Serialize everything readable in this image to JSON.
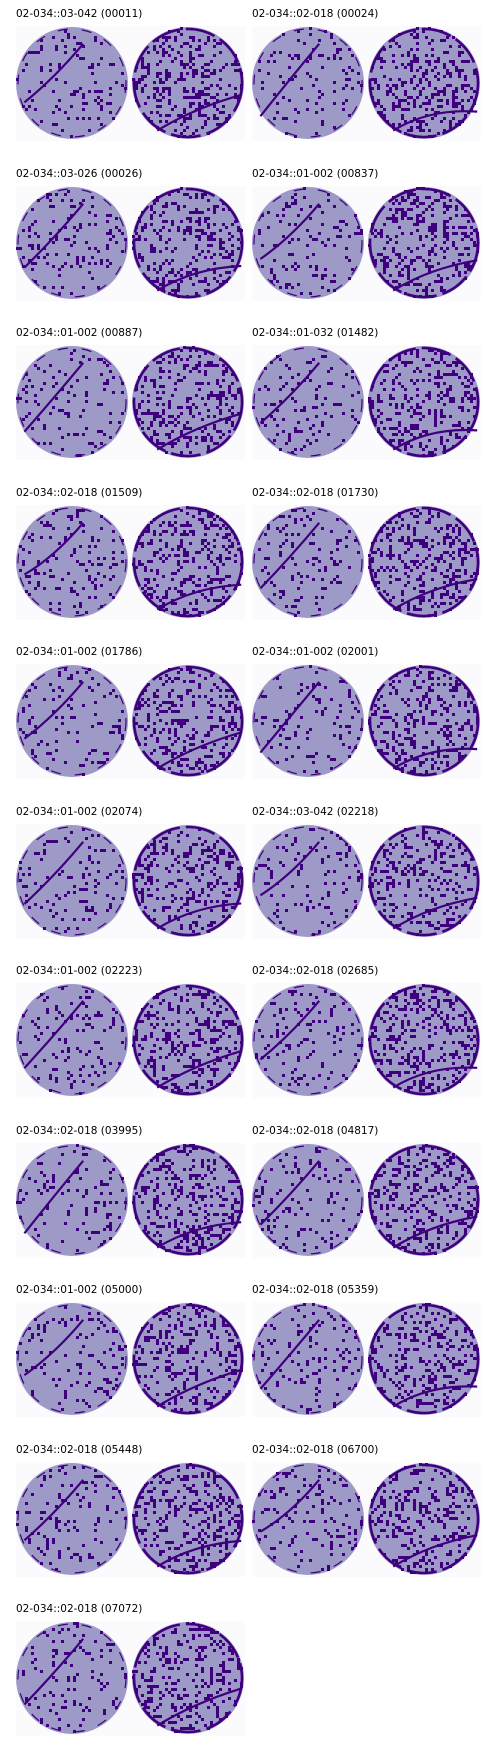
{
  "colors": {
    "background": "#fbfbfe",
    "disc_fill": "#9e9ac8",
    "defect": "#3f007d"
  },
  "panels": [
    {
      "label": "02-034::03-042 (00011)"
    },
    {
      "label": "02-034::02-018 (00024)"
    },
    {
      "label": "02-034::03-026 (00026)"
    },
    {
      "label": "02-034::01-002 (00837)"
    },
    {
      "label": "02-034::01-002 (00887)"
    },
    {
      "label": "02-034::01-032 (01482)"
    },
    {
      "label": "02-034::02-018 (01509)"
    },
    {
      "label": "02-034::02-018 (01730)"
    },
    {
      "label": "02-034::01-002 (01786)"
    },
    {
      "label": "02-034::01-002 (02001)"
    },
    {
      "label": "02-034::01-002 (02074)"
    },
    {
      "label": "02-034::03-042 (02218)"
    },
    {
      "label": "02-034::01-002 (02223)"
    },
    {
      "label": "02-034::02-018 (02685)"
    },
    {
      "label": "02-034::02-018 (03995)"
    },
    {
      "label": "02-034::02-018 (04817)"
    },
    {
      "label": "02-034::01-002 (05000)"
    },
    {
      "label": "02-034::02-018 (05359)"
    },
    {
      "label": "02-034::02-018 (05448)"
    },
    {
      "label": "02-034::02-018 (06700)"
    },
    {
      "label": "02-034::02-018 (07072)"
    }
  ]
}
